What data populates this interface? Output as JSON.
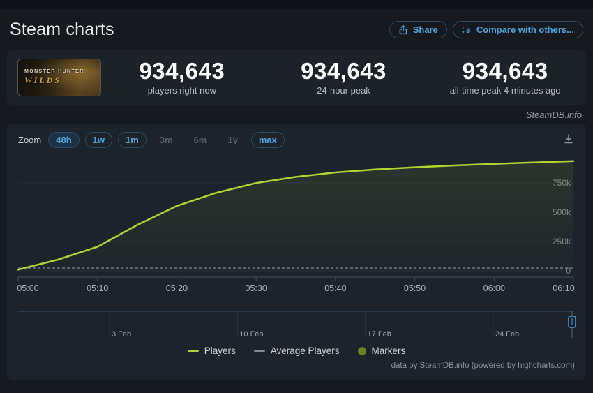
{
  "page": {
    "title": "Steam charts",
    "top_credit": "SteamDB.info",
    "bottom_credit": "data by SteamDB.info (powered by highcharts.com)",
    "accent_blue": "#4fa3dd"
  },
  "header": {
    "share_label": "Share",
    "compare_label": "Compare with others..."
  },
  "game": {
    "name_line1": "MONSTER HUNTER",
    "name_line2": "WILDS"
  },
  "stats": {
    "items": [
      {
        "value": "934,643",
        "label": "players right now"
      },
      {
        "value": "934,643",
        "label": "24-hour peak"
      },
      {
        "value": "934,643",
        "label": "all-time peak 4 minutes ago"
      }
    ]
  },
  "toolbar": {
    "zoom_label": "Zoom",
    "ranges": [
      {
        "label": "48h",
        "state": "active"
      },
      {
        "label": "1w",
        "state": "enabled"
      },
      {
        "label": "1m",
        "state": "enabled"
      },
      {
        "label": "3m",
        "state": "disabled"
      },
      {
        "label": "6m",
        "state": "disabled"
      },
      {
        "label": "1y",
        "state": "disabled"
      },
      {
        "label": "max",
        "state": "enabled"
      }
    ]
  },
  "chart_data": {
    "type": "line",
    "title": "",
    "xlabel": "",
    "ylabel": "",
    "grid": true,
    "legend_position": "bottom",
    "ylim": [
      0,
      975000
    ],
    "x_ticks": [
      "05:00",
      "05:10",
      "05:20",
      "05:30",
      "05:40",
      "05:50",
      "06:00",
      "06:10"
    ],
    "y_ticks": [
      {
        "label": "0",
        "value": 0
      },
      {
        "label": "250k",
        "value": 250000
      },
      {
        "label": "500k",
        "value": 500000
      },
      {
        "label": "750k",
        "value": 750000
      }
    ],
    "series": [
      {
        "name": "Players",
        "type": "line",
        "color": "#b4d333",
        "x": [
          "05:00",
          "05:05",
          "05:10",
          "05:15",
          "05:20",
          "05:25",
          "05:30",
          "05:35",
          "05:40",
          "05:45",
          "05:50",
          "05:55",
          "06:00",
          "06:05",
          "06:10"
        ],
        "values": [
          10000,
          95000,
          205000,
          390000,
          553000,
          665000,
          748000,
          800000,
          838000,
          863000,
          882000,
          898000,
          911000,
          923000,
          934643
        ]
      },
      {
        "name": "Average Players",
        "type": "line",
        "style": "dashed",
        "color": "#7f8a93",
        "constant_value": 24000
      },
      {
        "name": "Markers",
        "type": "scatter",
        "color": "#6b7f24",
        "values": []
      }
    ],
    "navigator": {
      "date_labels": [
        "3 Feb",
        "10 Feb",
        "17 Feb",
        "24 Feb"
      ]
    }
  },
  "legend": [
    {
      "label": "Players",
      "marker": "line",
      "color": "#b4d333"
    },
    {
      "label": "Average Players",
      "marker": "line",
      "color": "#7f8a93"
    },
    {
      "label": "Markers",
      "marker": "circle",
      "color": "#6b7f24"
    }
  ]
}
